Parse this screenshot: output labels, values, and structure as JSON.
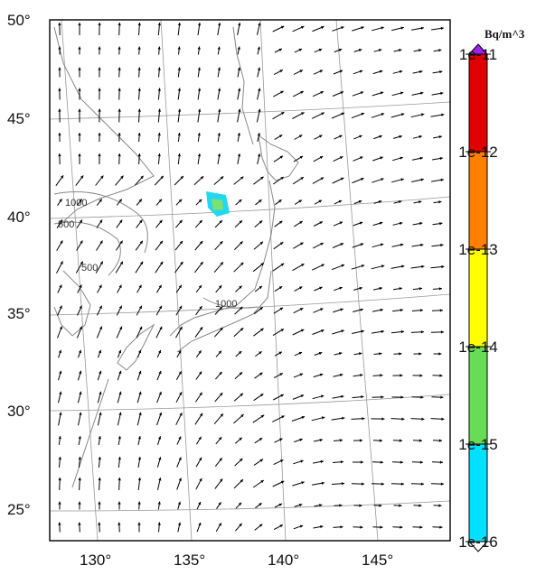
{
  "map": {
    "lat_ticks": [
      {
        "value": 50,
        "label": "50°"
      },
      {
        "value": 45,
        "label": "45°"
      },
      {
        "value": 40,
        "label": "40°"
      },
      {
        "value": 35,
        "label": "35°"
      },
      {
        "value": 30,
        "label": "30°"
      },
      {
        "value": 25,
        "label": "25°"
      }
    ],
    "lon_ticks": [
      {
        "value": 130,
        "label": "130°"
      },
      {
        "value": 135,
        "label": "135°"
      },
      {
        "value": 140,
        "label": "140°"
      },
      {
        "value": 145,
        "label": "145°"
      }
    ],
    "contour_labels": [
      "1000",
      "500",
      "500",
      "1000"
    ],
    "coast_color": "#888888",
    "grid_color": "#999999",
    "vector_color": "#000000",
    "plume_colors": [
      "#22d8f0",
      "#7fe070"
    ]
  },
  "colorbar": {
    "unit": "Bq/m^3",
    "labels": [
      "1e-11",
      "1e-12",
      "1e-13",
      "1e-14",
      "1e-15",
      "1e-16"
    ],
    "colors": [
      "#e00000",
      "#ff8000",
      "#ffff00",
      "#66dd55",
      "#00e0ff"
    ],
    "top_cap_color": "#a020f0",
    "bottom_cap_color": "#ffffff"
  }
}
